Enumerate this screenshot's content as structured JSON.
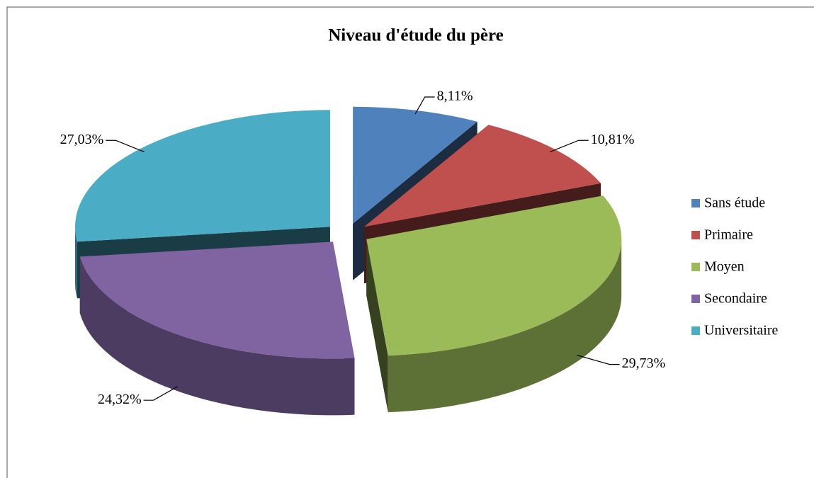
{
  "chart_data": {
    "type": "pie",
    "title": "Niveau d'étude du père",
    "categories": [
      "Sans étude",
      "Primaire",
      "Moyen",
      "Secondaire",
      "Universitaire"
    ],
    "values": [
      8.11,
      10.81,
      29.73,
      24.32,
      27.03
    ],
    "value_labels": [
      "8,11%",
      "10,81%",
      "29,73%",
      "24,32%",
      "27,03%"
    ],
    "colors": [
      "#4f81bd",
      "#c0504d",
      "#9bbb59",
      "#8064a2",
      "#4bacc6"
    ],
    "legend": "right"
  }
}
